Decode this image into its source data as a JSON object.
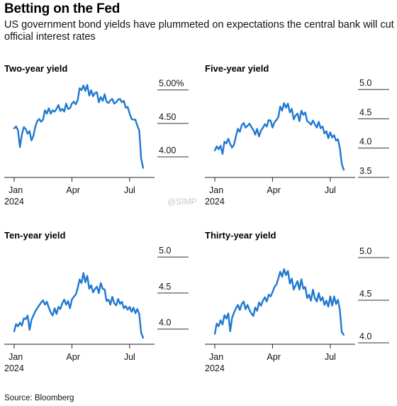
{
  "header": {
    "title": "Betting on the Fed",
    "subtitle": "US government bond yields have plummeted on expectations the central bank will cut official interest rates"
  },
  "footer": {
    "source": "Source: Bloomberg"
  },
  "watermark": "@SIMP",
  "colors": {
    "line": "#1f78d1",
    "axis": "#222222"
  },
  "chart_data": [
    {
      "type": "line",
      "title": "Two-year yield",
      "x_ticks": [
        "Jan\n2024",
        "Apr",
        "Jul"
      ],
      "x_tick_positions": [
        0,
        3,
        6
      ],
      "y_ticks": [
        "5.00%",
        "4.50",
        "4.00"
      ],
      "y_tick_values": [
        5.0,
        4.5,
        4.0
      ],
      "ylim": [
        3.65,
        5.05
      ],
      "x_unit": "months since Jan 1, 2024",
      "x": [
        0.0,
        0.1,
        0.2,
        0.3,
        0.4,
        0.5,
        0.6,
        0.7,
        0.8,
        0.9,
        1.0,
        1.1,
        1.2,
        1.3,
        1.4,
        1.5,
        1.6,
        1.7,
        1.8,
        1.9,
        2.0,
        2.1,
        2.2,
        2.3,
        2.4,
        2.5,
        2.6,
        2.7,
        2.8,
        2.9,
        3.0,
        3.1,
        3.2,
        3.3,
        3.4,
        3.5,
        3.6,
        3.7,
        3.8,
        3.9,
        4.0,
        4.1,
        4.2,
        4.3,
        4.4,
        4.5,
        4.6,
        4.7,
        4.8,
        4.9,
        5.0,
        5.1,
        5.2,
        5.3,
        5.4,
        5.5,
        5.6,
        5.7,
        5.8,
        5.9,
        6.0,
        6.1,
        6.2,
        6.3,
        6.4,
        6.5,
        6.6,
        6.7
      ],
      "y": [
        4.33,
        4.36,
        4.3,
        4.05,
        4.24,
        4.35,
        4.32,
        4.25,
        4.29,
        4.15,
        4.22,
        4.36,
        4.44,
        4.47,
        4.43,
        4.46,
        4.6,
        4.55,
        4.63,
        4.55,
        4.6,
        4.58,
        4.62,
        4.68,
        4.59,
        4.62,
        4.58,
        4.7,
        4.62,
        4.63,
        4.7,
        4.73,
        4.69,
        4.75,
        4.93,
        4.9,
        4.97,
        4.89,
        4.98,
        4.82,
        4.9,
        4.81,
        4.86,
        4.87,
        4.72,
        4.8,
        4.74,
        4.84,
        4.73,
        4.71,
        4.75,
        4.77,
        4.7,
        4.72,
        4.76,
        4.77,
        4.72,
        4.74,
        4.64,
        4.65,
        4.55,
        4.47,
        4.46,
        4.46,
        4.37,
        4.3,
        3.88,
        3.74
      ]
    },
    {
      "type": "line",
      "title": "Five-year yield",
      "x_ticks": [
        "Jan\n2024",
        "Apr",
        "Jul"
      ],
      "x_tick_positions": [
        0,
        3,
        6
      ],
      "y_ticks": [
        "5.0",
        "4.5",
        "4.0",
        "3.5"
      ],
      "y_tick_values": [
        5.0,
        4.5,
        4.0,
        3.5
      ],
      "ylim": [
        3.45,
        5.05
      ],
      "x_unit": "months since Jan 1, 2024",
      "x": [
        0.0,
        0.1,
        0.2,
        0.3,
        0.4,
        0.5,
        0.6,
        0.7,
        0.8,
        0.9,
        1.0,
        1.1,
        1.2,
        1.3,
        1.4,
        1.5,
        1.6,
        1.7,
        1.8,
        1.9,
        2.0,
        2.1,
        2.2,
        2.3,
        2.4,
        2.5,
        2.6,
        2.7,
        2.8,
        2.9,
        3.0,
        3.1,
        3.2,
        3.3,
        3.4,
        3.5,
        3.6,
        3.7,
        3.8,
        3.9,
        4.0,
        4.1,
        4.2,
        4.3,
        4.4,
        4.5,
        4.6,
        4.7,
        4.8,
        4.9,
        5.0,
        5.1,
        5.2,
        5.3,
        5.4,
        5.5,
        5.6,
        5.7,
        5.8,
        5.9,
        6.0,
        6.1,
        6.2,
        6.3,
        6.4,
        6.5,
        6.6,
        6.7
      ],
      "y": [
        3.85,
        3.92,
        3.87,
        3.93,
        3.79,
        4.0,
        3.97,
        4.05,
        3.96,
        3.9,
        3.95,
        4.1,
        4.22,
        4.17,
        4.28,
        4.32,
        4.24,
        4.27,
        4.31,
        4.25,
        4.2,
        4.12,
        4.22,
        4.09,
        4.19,
        4.24,
        4.3,
        4.26,
        4.37,
        4.36,
        4.24,
        4.33,
        4.37,
        4.42,
        4.6,
        4.53,
        4.66,
        4.58,
        4.65,
        4.5,
        4.56,
        4.38,
        4.45,
        4.48,
        4.35,
        4.53,
        4.46,
        4.5,
        4.35,
        4.33,
        4.29,
        4.36,
        4.3,
        4.24,
        4.34,
        4.23,
        4.26,
        4.14,
        4.18,
        4.06,
        4.16,
        4.07,
        4.11,
        4.02,
        4.04,
        3.89,
        3.62,
        3.52
      ]
    },
    {
      "type": "line",
      "title": "Ten-year yield",
      "x_ticks": [
        "Jan\n2024",
        "Apr",
        "Jul"
      ],
      "x_tick_positions": [
        0,
        3,
        6
      ],
      "y_ticks": [
        "5.0",
        "4.5",
        "4.0"
      ],
      "y_tick_values": [
        5.0,
        4.5,
        4.0
      ],
      "ylim": [
        3.75,
        5.05
      ],
      "x_unit": "months since Jan 1, 2024",
      "x": [
        0.0,
        0.1,
        0.2,
        0.3,
        0.4,
        0.5,
        0.6,
        0.7,
        0.8,
        0.9,
        1.0,
        1.1,
        1.2,
        1.3,
        1.4,
        1.5,
        1.6,
        1.7,
        1.8,
        1.9,
        2.0,
        2.1,
        2.2,
        2.3,
        2.4,
        2.5,
        2.6,
        2.7,
        2.8,
        2.9,
        3.0,
        3.1,
        3.2,
        3.3,
        3.4,
        3.5,
        3.6,
        3.7,
        3.8,
        3.9,
        4.0,
        4.1,
        4.2,
        4.3,
        4.4,
        4.5,
        4.6,
        4.7,
        4.8,
        4.9,
        5.0,
        5.1,
        5.2,
        5.3,
        5.4,
        5.5,
        5.6,
        5.7,
        5.8,
        5.9,
        6.0,
        6.1,
        6.2,
        6.3,
        6.4,
        6.5,
        6.6,
        6.7
      ],
      "y": [
        3.88,
        3.98,
        3.95,
        4.0,
        3.96,
        4.06,
        4.05,
        4.1,
        3.9,
        4.04,
        4.1,
        4.16,
        4.2,
        4.24,
        4.28,
        4.31,
        4.25,
        4.29,
        4.21,
        4.14,
        4.1,
        4.2,
        4.12,
        4.22,
        4.19,
        4.27,
        4.32,
        4.25,
        4.3,
        4.2,
        4.32,
        4.36,
        4.39,
        4.48,
        4.6,
        4.55,
        4.69,
        4.56,
        4.65,
        4.47,
        4.52,
        4.42,
        4.47,
        4.5,
        4.41,
        4.55,
        4.47,
        4.46,
        4.3,
        4.32,
        4.25,
        4.36,
        4.27,
        4.24,
        4.33,
        4.26,
        4.29,
        4.2,
        4.23,
        4.18,
        4.22,
        4.15,
        4.21,
        4.13,
        4.19,
        4.12,
        3.86,
        3.79
      ]
    },
    {
      "type": "line",
      "title": "Thirty-year yield",
      "x_ticks": [
        "Jan\n2024",
        "Apr",
        "Jul"
      ],
      "x_tick_positions": [
        0,
        3,
        6
      ],
      "y_ticks": [
        "5.0",
        "4.5",
        "4.0"
      ],
      "y_tick_values": [
        5.0,
        4.5,
        4.0
      ],
      "ylim": [
        3.95,
        5.05
      ],
      "x_unit": "months since Jan 1, 2024",
      "x": [
        0.0,
        0.1,
        0.2,
        0.3,
        0.4,
        0.5,
        0.6,
        0.7,
        0.8,
        0.9,
        1.0,
        1.1,
        1.2,
        1.3,
        1.4,
        1.5,
        1.6,
        1.7,
        1.8,
        1.9,
        2.0,
        2.1,
        2.2,
        2.3,
        2.4,
        2.5,
        2.6,
        2.7,
        2.8,
        2.9,
        3.0,
        3.1,
        3.2,
        3.3,
        3.4,
        3.5,
        3.6,
        3.7,
        3.8,
        3.9,
        4.0,
        4.1,
        4.2,
        4.3,
        4.4,
        4.5,
        4.6,
        4.7,
        4.8,
        4.9,
        5.0,
        5.1,
        5.2,
        5.3,
        5.4,
        5.5,
        5.6,
        5.7,
        5.8,
        5.9,
        6.0,
        6.1,
        6.2,
        6.3,
        6.4,
        6.5,
        6.6,
        6.7
      ],
      "y": [
        4.03,
        4.15,
        4.12,
        4.19,
        4.14,
        4.25,
        4.21,
        4.27,
        4.06,
        4.22,
        4.28,
        4.33,
        4.37,
        4.31,
        4.38,
        4.41,
        4.32,
        4.37,
        4.31,
        4.27,
        4.24,
        4.34,
        4.3,
        4.4,
        4.36,
        4.42,
        4.46,
        4.41,
        4.49,
        4.47,
        4.52,
        4.58,
        4.61,
        4.68,
        4.76,
        4.7,
        4.79,
        4.72,
        4.77,
        4.62,
        4.68,
        4.55,
        4.6,
        4.65,
        4.55,
        4.67,
        4.56,
        4.58,
        4.45,
        4.49,
        4.42,
        4.55,
        4.45,
        4.41,
        4.51,
        4.42,
        4.46,
        4.37,
        4.42,
        4.35,
        4.47,
        4.36,
        4.47,
        4.38,
        4.43,
        4.31,
        4.05,
        4.02
      ]
    }
  ]
}
